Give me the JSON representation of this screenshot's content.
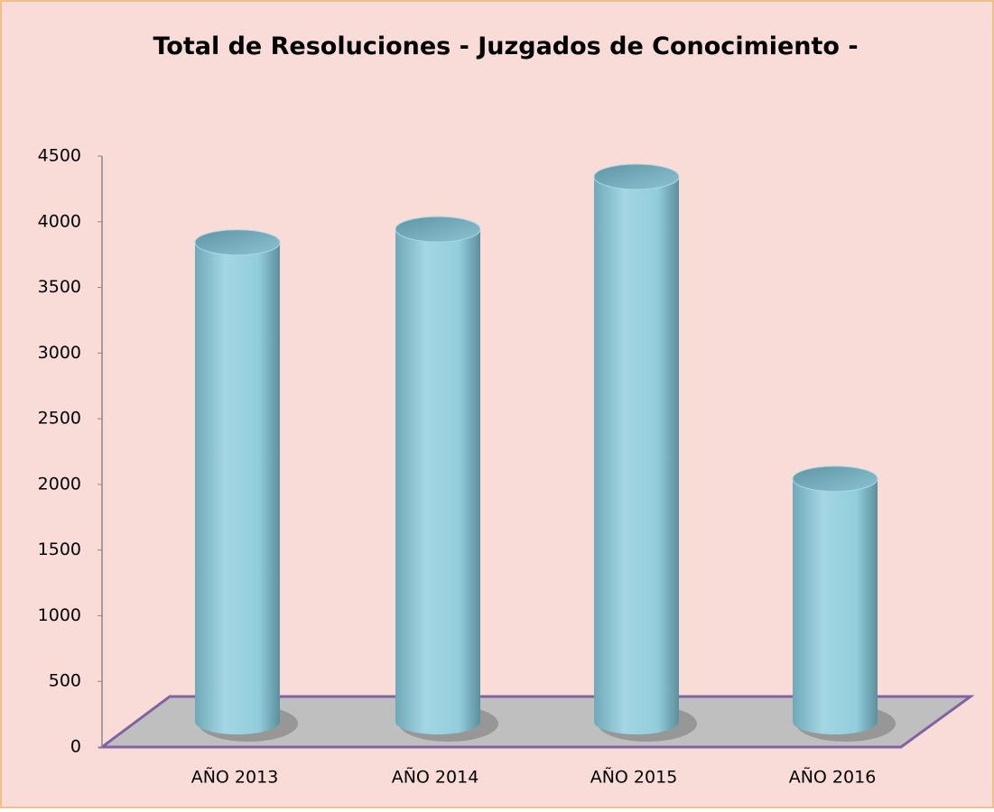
{
  "chart_data": {
    "type": "bar",
    "title": "Total de Resoluciones - Juzgados de Conocimiento -",
    "categories": [
      "AÑO 2013",
      "AÑO 2014",
      "AÑO 2015",
      "AÑO 2016"
    ],
    "values": [
      3650,
      3750,
      4150,
      1850
    ],
    "color": "#92cddc",
    "ylim": [
      0,
      4500
    ],
    "yticks": [
      0,
      500,
      1000,
      1500,
      2000,
      2500,
      3000,
      3500,
      4000,
      4500
    ]
  }
}
